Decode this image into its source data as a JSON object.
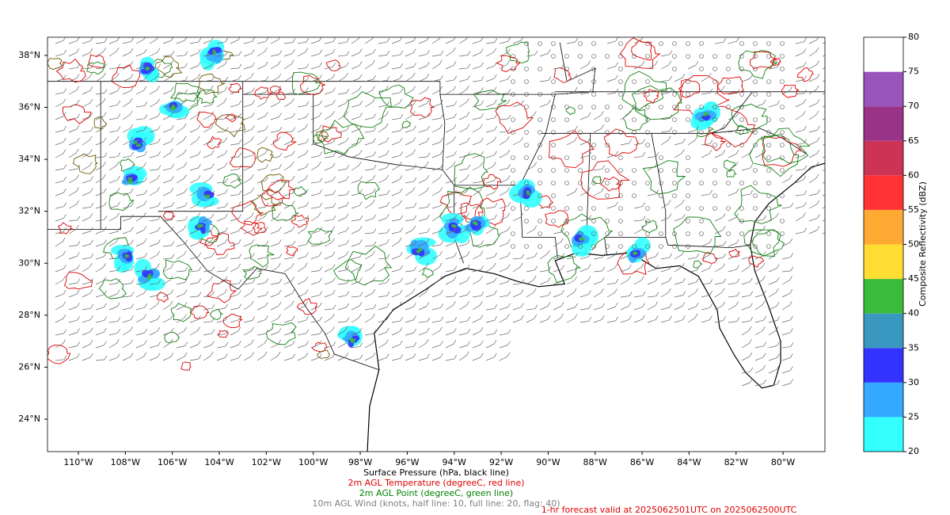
{
  "map": {
    "lon_ticks": [
      {
        "value": -110,
        "label": "110°W"
      },
      {
        "value": -108,
        "label": "108°W"
      },
      {
        "value": -106,
        "label": "106°W"
      },
      {
        "value": -104,
        "label": "104°W"
      },
      {
        "value": -102,
        "label": "102°W"
      },
      {
        "value": -100,
        "label": "100°W"
      },
      {
        "value": -98,
        "label": "98°W"
      },
      {
        "value": -96,
        "label": "96°W"
      },
      {
        "value": -94,
        "label": "94°W"
      },
      {
        "value": -92,
        "label": "92°W"
      },
      {
        "value": -90,
        "label": "90°W"
      },
      {
        "value": -88,
        "label": "88°W"
      },
      {
        "value": -86,
        "label": "86°W"
      },
      {
        "value": -84,
        "label": "84°W"
      },
      {
        "value": -82,
        "label": "82°W"
      },
      {
        "value": -80,
        "label": "80°W"
      }
    ],
    "lat_ticks": [
      {
        "value": 24,
        "label": "24°N"
      },
      {
        "value": 26,
        "label": "26°N"
      },
      {
        "value": 28,
        "label": "28°N"
      },
      {
        "value": 30,
        "label": "30°N"
      },
      {
        "value": 32,
        "label": "32°N"
      },
      {
        "value": 34,
        "label": "34°N"
      },
      {
        "value": 36,
        "label": "36°N"
      },
      {
        "value": 38,
        "label": "38°N"
      }
    ],
    "caption": [
      "Surface Pressure (hPa, black line)",
      "2m AGL Temperature (degreeC, red line)",
      "2m AGL Point (degreeC, green line)",
      "10m AGL Wind (knots, half line: 10, full line: 20, flag: 40)"
    ],
    "forecast_note": "1-hr forecast valid at 2025062501UTC on 2025062500UTC",
    "colorbar": {
      "label": "Composite Reflectivity (dBZ)",
      "lim": [
        20,
        80
      ],
      "ticks": [
        20,
        25,
        30,
        35,
        40,
        45,
        50,
        55,
        60,
        65,
        70,
        75,
        80
      ],
      "colors": [
        "#33ffff",
        "#33aaff",
        "#3333ff",
        "#3a98c0",
        "#3bbb3b",
        "#ffdd33",
        "#ffaa33",
        "#ff3333",
        "#cc3355",
        "#993388",
        "#9955bb",
        "#ffffff"
      ]
    }
  }
}
